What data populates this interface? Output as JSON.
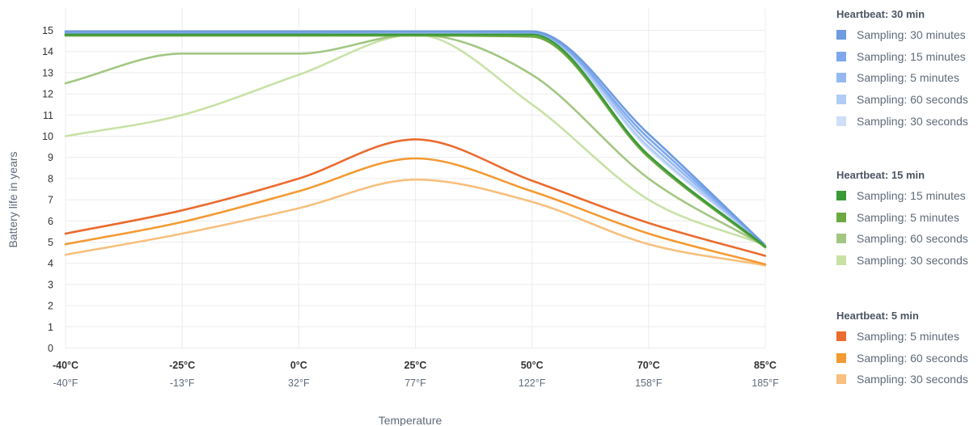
{
  "chart_data": {
    "type": "line",
    "xlabel": "Temperature",
    "ylabel": "Battery life in years",
    "ylim": [
      0,
      15
    ],
    "yticks": [
      0,
      1,
      2,
      3,
      4,
      5,
      6,
      7,
      8,
      9,
      10,
      11,
      12,
      13,
      14,
      15
    ],
    "categories": [
      "-40°C",
      "-25°C",
      "0°C",
      "25°C",
      "50°C",
      "70°C",
      "85°C"
    ],
    "fahrenheit_labels": [
      "-40°F",
      "-13°F",
      "32°F",
      "77°F",
      "122°F",
      "158°F",
      "185°F"
    ],
    "grid": true,
    "legend_position": "right",
    "groups": [
      {
        "title": "Heartbeat: 30 min",
        "series": [
          {
            "name": "Sampling: 30 minutes",
            "color": "#6f9be0",
            "values": [
              14.95,
              14.95,
              14.95,
              14.95,
              14.95,
              10.1,
              4.85
            ]
          },
          {
            "name": "Sampling: 15 minutes",
            "color": "#7ea8ee",
            "values": [
              14.9,
              14.9,
              14.9,
              14.95,
              14.9,
              9.9,
              4.85
            ]
          },
          {
            "name": "Sampling: 5 minutes",
            "color": "#96b8f1",
            "values": [
              14.85,
              14.85,
              14.85,
              14.9,
              14.9,
              9.7,
              4.85
            ]
          },
          {
            "name": "Sampling: 60 seconds",
            "color": "#b1ccf5",
            "values": [
              14.8,
              14.8,
              14.8,
              14.85,
              14.85,
              9.5,
              4.85
            ]
          },
          {
            "name": "Sampling: 30 seconds",
            "color": "#cfdff8",
            "values": [
              14.75,
              14.75,
              14.75,
              14.8,
              14.85,
              9.4,
              4.85
            ]
          }
        ]
      },
      {
        "title": "Heartbeat: 15 min",
        "series": [
          {
            "name": "Sampling: 15 minutes",
            "color": "#3a9a3a",
            "values": [
              14.8,
              14.8,
              14.8,
              14.8,
              14.8,
              9.1,
              4.8
            ]
          },
          {
            "name": "Sampling: 5 minutes",
            "color": "#6ea843",
            "values": [
              14.75,
              14.75,
              14.75,
              14.75,
              14.7,
              9.0,
              4.75
            ]
          },
          {
            "name": "Sampling: 60 seconds",
            "color": "#a3c783",
            "values": [
              12.5,
              13.9,
              13.9,
              14.8,
              12.9,
              8.0,
              4.8
            ]
          },
          {
            "name": "Sampling: 30 seconds",
            "color": "#c8e2a6",
            "values": [
              10.0,
              11.0,
              12.9,
              14.8,
              11.5,
              7.0,
              4.85
            ]
          }
        ]
      },
      {
        "title": "Heartbeat: 5 min",
        "series": [
          {
            "name": "Sampling: 5 minutes",
            "color": "#ea6c2f",
            "values": [
              5.4,
              6.5,
              8.0,
              9.85,
              7.9,
              5.9,
              4.35
            ]
          },
          {
            "name": "Sampling: 60 seconds",
            "color": "#f39a32",
            "values": [
              4.9,
              5.95,
              7.4,
              8.95,
              7.4,
              5.4,
              3.95
            ]
          },
          {
            "name": "Sampling: 30 seconds",
            "color": "#f7c07e",
            "values": [
              4.4,
              5.4,
              6.6,
              7.95,
              6.9,
              4.9,
              3.9
            ]
          }
        ]
      }
    ]
  }
}
